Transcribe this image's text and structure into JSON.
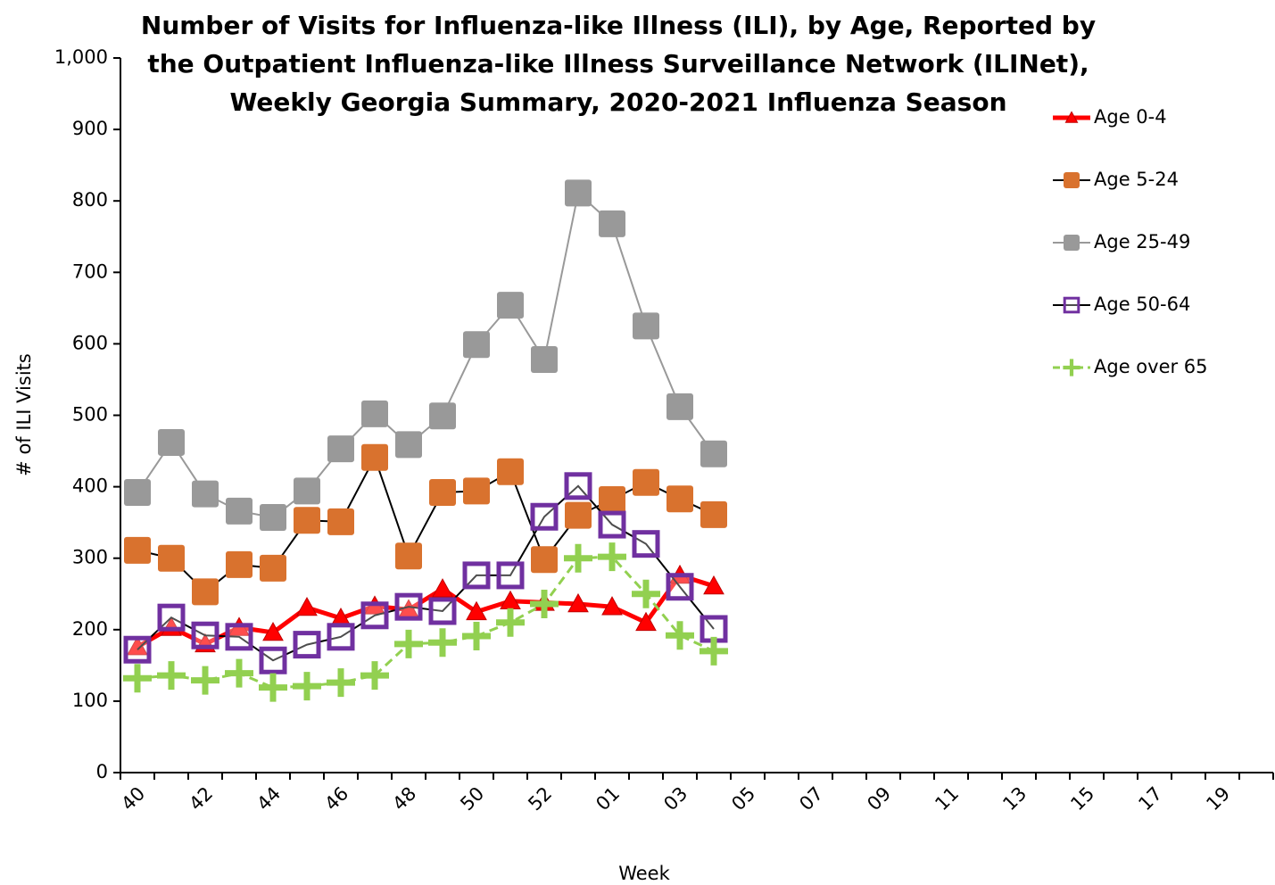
{
  "chart_data": {
    "type": "line",
    "title": [
      "Number of Visits for Influenza-like Illness (ILI), by Age, Reported by",
      "the Outpatient Influenza-like Illness Surveillance Network (ILINet),",
      "Weekly Georgia Summary, 2020-2021 Influenza Season"
    ],
    "x_label": "Week",
    "y_label": "# of ILI Visits",
    "categories": [
      "40",
      null,
      "42",
      null,
      "44",
      null,
      "46",
      null,
      "48",
      null,
      "50",
      null,
      "52",
      null,
      "01",
      null,
      "03",
      null,
      "05",
      null,
      "07",
      null,
      "09",
      null,
      "11",
      null,
      "13",
      null,
      "15",
      null,
      "17",
      null,
      "19",
      null
    ],
    "ylim": [
      0,
      1000
    ],
    "yticks": [
      0,
      100,
      200,
      300,
      400,
      500,
      600,
      700,
      800,
      900,
      {
        "value": 1000,
        "label": "1,000"
      }
    ],
    "grid": false,
    "legend": "right",
    "series": [
      {
        "name": "Age 0-4",
        "color": "#ff0000",
        "line_color": "#ff0000",
        "marker": "triangle",
        "values": [
          176,
          203,
          180,
          203,
          196,
          231,
          216,
          233,
          228,
          257,
          225,
          240,
          238,
          236,
          232,
          210,
          276,
          261,
          null,
          null,
          null,
          null,
          null,
          null,
          null,
          null,
          null,
          null,
          null,
          null,
          null,
          null,
          null,
          null
        ]
      },
      {
        "name": "Age 5-24",
        "color": "#d9722e",
        "line_color": "#000000",
        "marker": "square",
        "values": [
          311,
          300,
          253,
          291,
          286,
          353,
          351,
          441,
          303,
          392,
          394,
          421,
          298,
          360,
          382,
          406,
          383,
          361,
          null,
          null,
          null,
          null,
          null,
          null,
          null,
          null,
          null,
          null,
          null,
          null,
          null,
          null,
          null,
          null
        ]
      },
      {
        "name": "Age 25-49",
        "color": "#999999",
        "line_color": "#999999",
        "marker": "square",
        "values": [
          392,
          462,
          390,
          366,
          357,
          394,
          453,
          502,
          459,
          499,
          599,
          654,
          578,
          811,
          768,
          625,
          512,
          446,
          null,
          null,
          null,
          null,
          null,
          null,
          null,
          null,
          null,
          null,
          null,
          null,
          null,
          null,
          null,
          null
        ]
      },
      {
        "name": "Age 50-64",
        "color": "#7030a0",
        "line_color": "#000000",
        "marker": "hollow-square",
        "values": [
          172,
          217,
          192,
          190,
          157,
          179,
          190,
          220,
          232,
          226,
          276,
          276,
          358,
          401,
          347,
          320,
          260,
          201,
          null,
          null,
          null,
          null,
          null,
          null,
          null,
          null,
          null,
          null,
          null,
          null,
          null,
          null,
          null,
          null
        ]
      },
      {
        "name": "Age over 65",
        "color": "#92d050",
        "line_color": "#92d050",
        "marker": "plus",
        "dashed": true,
        "values": [
          132,
          136,
          129,
          139,
          119,
          121,
          126,
          136,
          180,
          182,
          191,
          210,
          236,
          300,
          302,
          250,
          192,
          170,
          null,
          null,
          null,
          null,
          null,
          null,
          null,
          null,
          null,
          null,
          null,
          null,
          null,
          null,
          null,
          null
        ]
      }
    ]
  }
}
